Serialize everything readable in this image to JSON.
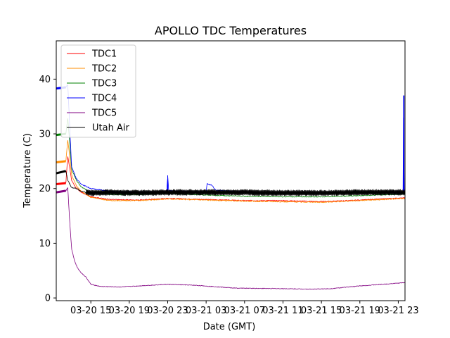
{
  "chart_data": {
    "type": "line",
    "title": "APOLLO TDC Temperatures",
    "xlabel": "Date (GMT)",
    "ylabel": "Temperature (C)",
    "xlim": [
      11.4,
      47.7
    ],
    "ylim": [
      -0.5,
      47
    ],
    "x_unit": "hours since 03-20 00:00 GMT",
    "x_ticks": [
      {
        "value": 15,
        "label": "03-20 15"
      },
      {
        "value": 19,
        "label": "03-20 19"
      },
      {
        "value": 23,
        "label": "03-20 23"
      },
      {
        "value": 27,
        "label": "03-21 03"
      },
      {
        "value": 31,
        "label": "03-21 07"
      },
      {
        "value": 35,
        "label": "03-21 11"
      },
      {
        "value": 39,
        "label": "03-21 15"
      },
      {
        "value": 43,
        "label": "03-21 19"
      },
      {
        "value": 47,
        "label": "03-21 23"
      }
    ],
    "y_ticks": [
      {
        "value": 0,
        "label": "0"
      },
      {
        "value": 10,
        "label": "10"
      },
      {
        "value": 20,
        "label": "20"
      },
      {
        "value": 30,
        "label": "30"
      },
      {
        "value": 40,
        "label": "40"
      }
    ],
    "legend_position": "top-left",
    "series": [
      {
        "name": "TDC1",
        "color": "#ff0000",
        "noise": 0.08,
        "x": [
          11.4,
          12.4,
          12.6,
          13.0,
          13.5,
          14.0,
          15.0,
          17.0,
          20.0,
          23.0,
          27.0,
          31.0,
          35.0,
          39.0,
          43.0,
          47.7
        ],
        "y": [
          20.8,
          21.0,
          26.0,
          21.5,
          20.0,
          19.3,
          18.5,
          18.0,
          17.9,
          18.2,
          18.0,
          17.8,
          17.8,
          17.6,
          17.9,
          18.3
        ]
      },
      {
        "name": "TDC2",
        "color": "#ff8c00",
        "noise": 0.1,
        "x": [
          11.4,
          12.4,
          12.6,
          13.0,
          13.5,
          14.0,
          15.0,
          17.0,
          20.0,
          23.0,
          27.0,
          31.0,
          35.0,
          39.0,
          43.0,
          47.7
        ],
        "y": [
          24.8,
          25.0,
          29.0,
          22.5,
          20.5,
          19.5,
          18.4,
          17.8,
          17.8,
          18.1,
          17.9,
          17.7,
          17.6,
          17.5,
          17.8,
          18.2
        ]
      },
      {
        "name": "TDC3",
        "color": "#008000",
        "noise": 0.08,
        "x": [
          11.4,
          12.4,
          12.6,
          13.0,
          13.5,
          14.0,
          15.0,
          17.0,
          20.0,
          23.0,
          27.0,
          31.0,
          35.0,
          39.0,
          43.0,
          47.7
        ],
        "y": [
          29.8,
          30.0,
          33.0,
          23.5,
          21.5,
          20.3,
          19.3,
          18.9,
          18.9,
          19.1,
          18.8,
          18.6,
          18.5,
          18.5,
          18.7,
          19.0
        ]
      },
      {
        "name": "TDC4",
        "color": "#0000ff",
        "noise": 0.08,
        "x": [
          11.4,
          12.4,
          12.6,
          13.0,
          13.5,
          14.0,
          15.0,
          17.0,
          20.0,
          22.9,
          23.0,
          23.1,
          27.0,
          27.1,
          27.2,
          27.6,
          28.0,
          31.0,
          35.0,
          39.0,
          43.0,
          47.5,
          47.55,
          47.6,
          47.7
        ],
        "y": [
          38.3,
          38.5,
          39.0,
          24.0,
          21.8,
          20.8,
          20.0,
          19.5,
          19.4,
          19.5,
          22.4,
          19.6,
          19.4,
          20.9,
          20.8,
          20.6,
          19.7,
          19.4,
          19.2,
          19.2,
          19.3,
          19.3,
          37.0,
          19.3,
          19.3
        ]
      },
      {
        "name": "TDC5",
        "color": "#800080",
        "noise": 0.06,
        "x": [
          11.4,
          12.4,
          12.6,
          12.8,
          13.0,
          13.3,
          13.6,
          14.0,
          14.5,
          15.0,
          16.0,
          18.0,
          20.0,
          23.0,
          26.0,
          30.0,
          35.0,
          38.0,
          40.0,
          43.0,
          47.7
        ],
        "y": [
          19.3,
          19.6,
          20.2,
          14.0,
          9.0,
          6.8,
          5.5,
          4.6,
          3.8,
          2.5,
          2.1,
          2.0,
          2.2,
          2.5,
          2.3,
          1.8,
          1.7,
          1.6,
          1.7,
          2.2,
          2.8
        ]
      },
      {
        "name": "Utah Air",
        "color": "#000000",
        "noise": 0.1,
        "oscillation": 0.45,
        "x": [
          11.4,
          12.4,
          12.6,
          13.0,
          13.5,
          14.0,
          15.0,
          17.0,
          20.0,
          23.0,
          27.0,
          31.0,
          35.0,
          39.0,
          43.0,
          47.7
        ],
        "y": [
          22.8,
          23.2,
          21.5,
          20.2,
          20.0,
          19.5,
          19.2,
          19.3,
          19.2,
          19.3,
          19.3,
          19.3,
          19.2,
          19.2,
          19.3,
          19.3
        ]
      }
    ]
  }
}
